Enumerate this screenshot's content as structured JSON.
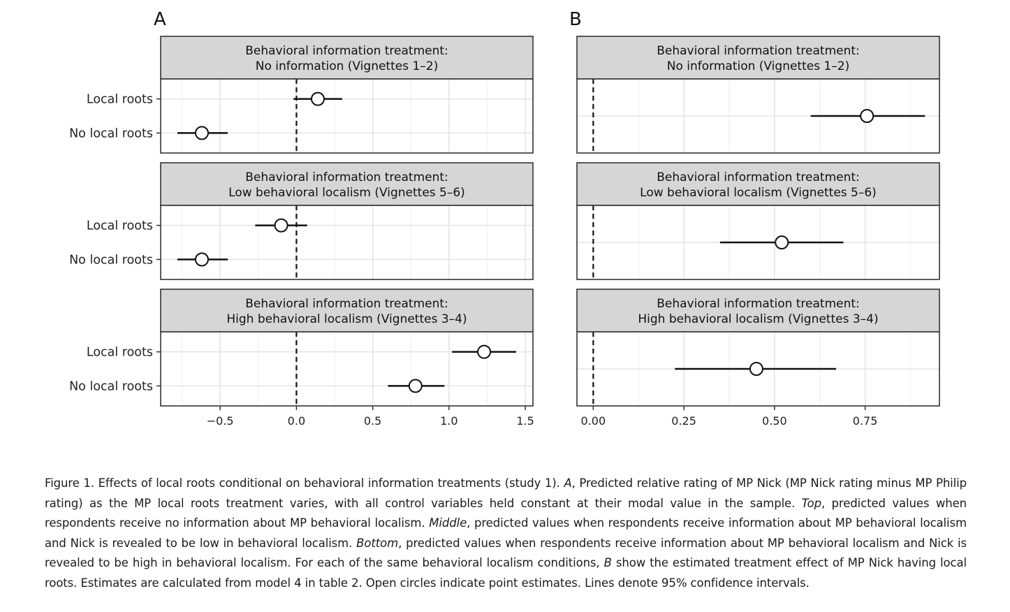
{
  "chart_data": [
    {
      "type": "scatter",
      "panel_label": "A",
      "x_ticks": [
        "−0.5",
        "0.0",
        "0.5",
        "1.0",
        "1.5"
      ],
      "x_tick_values": [
        -0.5,
        0,
        0.5,
        1.0,
        1.5
      ],
      "xlim": [
        -0.89,
        1.55
      ],
      "reference_line": 0,
      "categories": [
        "Local roots",
        "No local roots"
      ],
      "facets": [
        {
          "title_line1": "Behavioral information treatment:",
          "title_line2": "No information (Vignettes 1–2)",
          "points": [
            {
              "category": "Local roots",
              "estimate": 0.14,
              "lower": -0.02,
              "upper": 0.3
            },
            {
              "category": "No local roots",
              "estimate": -0.62,
              "lower": -0.78,
              "upper": -0.45
            }
          ]
        },
        {
          "title_line1": "Behavioral information treatment:",
          "title_line2": "Low behavioral localism (Vignettes 5–6)",
          "points": [
            {
              "category": "Local roots",
              "estimate": -0.1,
              "lower": -0.27,
              "upper": 0.07
            },
            {
              "category": "No local roots",
              "estimate": -0.62,
              "lower": -0.78,
              "upper": -0.45
            }
          ]
        },
        {
          "title_line1": "Behavioral information treatment:",
          "title_line2": "High behavioral localism (Vignettes 3–4)",
          "points": [
            {
              "category": "Local roots",
              "estimate": 1.23,
              "lower": 1.02,
              "upper": 1.44
            },
            {
              "category": "No local roots",
              "estimate": 0.78,
              "lower": 0.6,
              "upper": 0.97
            }
          ]
        }
      ]
    },
    {
      "type": "scatter",
      "panel_label": "B",
      "x_ticks": [
        "0.00",
        "0.25",
        "0.50",
        "0.75"
      ],
      "x_tick_values": [
        0,
        0.25,
        0.5,
        0.75
      ],
      "xlim": [
        -0.045,
        0.955
      ],
      "reference_line": 0,
      "facets": [
        {
          "title_line1": "Behavioral information treatment:",
          "title_line2": "No information (Vignettes 1–2)",
          "points": [
            {
              "estimate": 0.755,
              "lower": 0.6,
              "upper": 0.915
            }
          ]
        },
        {
          "title_line1": "Behavioral information treatment:",
          "title_line2": "Low behavioral localism (Vignettes 5–6)",
          "points": [
            {
              "estimate": 0.52,
              "lower": 0.35,
              "upper": 0.69
            }
          ]
        },
        {
          "title_line1": "Behavioral information treatment:",
          "title_line2": "High behavioral localism (Vignettes 3–4)",
          "points": [
            {
              "estimate": 0.45,
              "lower": 0.225,
              "upper": 0.67
            }
          ]
        }
      ]
    }
  ],
  "caption": {
    "part1": "Figure 1. Effects of local roots conditional on behavioral information treatments (study 1). ",
    "a_label": "A",
    "part2": ", Predicted relative rating of MP Nick (MP Nick rating minus MP Philip rating) as the MP local roots treatment varies, with all control variables held constant at their modal value in the sample. ",
    "top_label": "Top",
    "part3": ", predicted values when respondents receive no information about MP behavioral localism. ",
    "middle_label": "Middle",
    "part4": ", predicted values when respondents receive information about MP behavioral localism and Nick is revealed to be low in behavioral localism. ",
    "bottom_label": "Bottom",
    "part5": ", predicted values when respondents receive information about MP behavioral localism and Nick is revealed to be high in behavioral localism. For each of the same behavioral localism conditions, ",
    "b_label": "B",
    "part6": " show the estimated treatment effect of MP Nick having local roots. Estimates are calculated from model 4 in table 2. Open circles indicate point estimates. Lines denote 95% confidence intervals."
  }
}
